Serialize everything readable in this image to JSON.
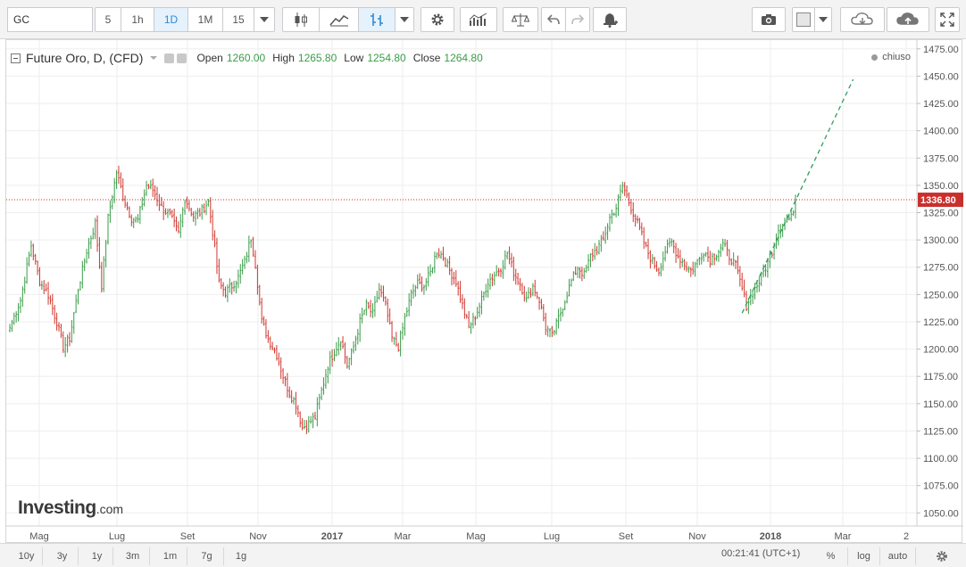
{
  "toolbar": {
    "symbol_value": "GC",
    "intervals": [
      "5",
      "1h",
      "1D",
      "1M",
      "15"
    ],
    "active_interval": "1D",
    "icons": [
      "candles-icon",
      "line-chart-icon",
      "indicator-icon",
      "settings-icon",
      "bars-icon",
      "compare-icon",
      "undo-icon",
      "redo-icon",
      "alert-icon",
      "camera-icon",
      "color-icon",
      "cloud-download-icon",
      "cloud-upload-icon",
      "fullscreen-icon"
    ]
  },
  "legend": {
    "title": "Future Oro, D, (CFD)",
    "open_label": "Open",
    "open_value": "1260.00",
    "high_label": "High",
    "high_value": "1265.80",
    "low_label": "Low",
    "low_value": "1254.80",
    "close_label": "Close",
    "close_value": "1264.80"
  },
  "status": {
    "text": "chiuso"
  },
  "watermark": {
    "brand": "Investing",
    "tld": ".com"
  },
  "chart_data": {
    "type": "candlestick",
    "instrument": "Future Oro",
    "interval": "D",
    "ylim": [
      1038,
      1483
    ],
    "y_ticks": [
      1050,
      1075,
      1100,
      1125,
      1150,
      1175,
      1200,
      1225,
      1250,
      1275,
      1300,
      1325,
      1350,
      1375,
      1400,
      1425,
      1450,
      1475
    ],
    "y_tick_labels": [
      "1050.00",
      "1075.00",
      "1100.00",
      "1125.00",
      "1150.00",
      "1175.00",
      "1200.00",
      "1225.00",
      "1250.00",
      "1275.00",
      "1300.00",
      "1325.00",
      "1350.00",
      "1375.00",
      "1400.00",
      "1425.00",
      "1450.00",
      "1475.00"
    ],
    "x_ticks": [
      "Mag",
      "Lug",
      "Set",
      "Nov",
      "2017",
      "Mar",
      "Mag",
      "Lug",
      "Set",
      "Nov",
      "2018",
      "Mar",
      "2"
    ],
    "bold_x_ticks": [
      "2017",
      "2018"
    ],
    "last_price": 1336.8,
    "last_price_label": "1336.80",
    "up_color": "#3a9c48",
    "down_color": "#d0362e",
    "price_line_color": "#c8302d",
    "trendline_color": "#2e9c63",
    "close_path": [
      [
        0,
        1220
      ],
      [
        5,
        1245
      ],
      [
        10,
        1295
      ],
      [
        14,
        1262
      ],
      [
        18,
        1250
      ],
      [
        22,
        1225
      ],
      [
        25,
        1202
      ],
      [
        28,
        1210
      ],
      [
        32,
        1255
      ],
      [
        36,
        1290
      ],
      [
        40,
        1315
      ],
      [
        43,
        1258
      ],
      [
        46,
        1320
      ],
      [
        50,
        1362
      ],
      [
        53,
        1340
      ],
      [
        57,
        1320
      ],
      [
        60,
        1318
      ],
      [
        64,
        1350
      ],
      [
        67,
        1346
      ],
      [
        71,
        1330
      ],
      [
        75,
        1322
      ],
      [
        79,
        1306
      ],
      [
        82,
        1338
      ],
      [
        86,
        1322
      ],
      [
        89,
        1325
      ],
      [
        93,
        1335
      ],
      [
        95,
        1308
      ],
      [
        98,
        1260
      ],
      [
        101,
        1252
      ],
      [
        104,
        1258
      ],
      [
        107,
        1266
      ],
      [
        110,
        1280
      ],
      [
        113,
        1302
      ],
      [
        115,
        1278
      ],
      [
        118,
        1225
      ],
      [
        121,
        1210
      ],
      [
        125,
        1195
      ],
      [
        128,
        1175
      ],
      [
        131,
        1160
      ],
      [
        134,
        1150
      ],
      [
        137,
        1128
      ],
      [
        140,
        1132
      ],
      [
        143,
        1138
      ],
      [
        146,
        1162
      ],
      [
        149,
        1185
      ],
      [
        152,
        1198
      ],
      [
        155,
        1210
      ],
      [
        158,
        1185
      ],
      [
        161,
        1202
      ],
      [
        164,
        1225
      ],
      [
        167,
        1240
      ],
      [
        170,
        1232
      ],
      [
        173,
        1255
      ],
      [
        176,
        1240
      ],
      [
        179,
        1210
      ],
      [
        182,
        1202
      ],
      [
        185,
        1228
      ],
      [
        188,
        1250
      ],
      [
        191,
        1260
      ],
      [
        194,
        1258
      ],
      [
        197,
        1270
      ],
      [
        200,
        1290
      ],
      [
        203,
        1285
      ],
      [
        206,
        1272
      ],
      [
        209,
        1262
      ],
      [
        212,
        1240
      ],
      [
        215,
        1220
      ],
      [
        218,
        1230
      ],
      [
        221,
        1245
      ],
      [
        224,
        1262
      ],
      [
        227,
        1268
      ],
      [
        230,
        1275
      ],
      [
        233,
        1288
      ],
      [
        236,
        1270
      ],
      [
        239,
        1260
      ],
      [
        242,
        1245
      ],
      [
        245,
        1258
      ],
      [
        248,
        1245
      ],
      [
        251,
        1220
      ],
      [
        254,
        1212
      ],
      [
        257,
        1228
      ],
      [
        260,
        1245
      ],
      [
        263,
        1262
      ],
      [
        266,
        1275
      ],
      [
        269,
        1268
      ],
      [
        272,
        1285
      ],
      [
        275,
        1292
      ],
      [
        278,
        1300
      ],
      [
        281,
        1320
      ],
      [
        284,
        1330
      ],
      [
        287,
        1350
      ],
      [
        289,
        1340
      ],
      [
        292,
        1325
      ],
      [
        295,
        1310
      ],
      [
        298,
        1292
      ],
      [
        301,
        1280
      ],
      [
        304,
        1272
      ],
      [
        307,
        1290
      ],
      [
        310,
        1298
      ],
      [
        313,
        1285
      ],
      [
        316,
        1278
      ],
      [
        319,
        1272
      ],
      [
        322,
        1280
      ],
      [
        325,
        1290
      ],
      [
        328,
        1282
      ],
      [
        331,
        1288
      ],
      [
        334,
        1296
      ],
      [
        337,
        1285
      ],
      [
        340,
        1276
      ],
      [
        343,
        1255
      ],
      [
        345,
        1240
      ],
      [
        348,
        1252
      ],
      [
        351,
        1262
      ],
      [
        354,
        1275
      ],
      [
        357,
        1290
      ],
      [
        360,
        1310
      ],
      [
        363,
        1318
      ],
      [
        366,
        1320
      ],
      [
        368,
        1336.8
      ]
    ],
    "trendline": {
      "from": [
        343,
        1233
      ],
      "to": [
        395,
        1447
      ]
    }
  },
  "bottombar": {
    "ranges": [
      "10y",
      "3y",
      "1y",
      "3m",
      "1m",
      "7g",
      "1g"
    ],
    "clock": "00:21:41 (UTC+1)",
    "percent": "%",
    "log": "log",
    "auto": "auto"
  }
}
